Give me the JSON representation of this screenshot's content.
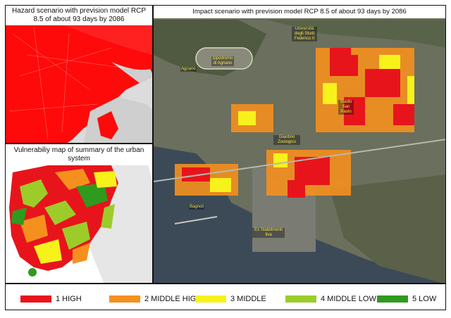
{
  "panels": {
    "hazard": {
      "title": "Hazard scenario with prevision model RCP 8.5 of about 93 days by 2086"
    },
    "vulnerability": {
      "title": "Vulnerabiliy map of summary of the urban system"
    },
    "impact": {
      "title": "Impact scenario with prevision model RCP 8.5 of about 93 days by 2086",
      "place_labels": {
        "agnano": "Agnano",
        "ippodromo": "Ippodromo di Agnano",
        "universita": "Università degli Studi Federico II",
        "stadio": "Stadio San Paolo",
        "giardino": "Giardino Zoologico",
        "bagnoli": "Bagnoli",
        "ex_stabilimenti": "Ex Stabilimenti Ilva"
      }
    }
  },
  "legend": [
    {
      "label": "1 HIGH",
      "color": "#e8141c"
    },
    {
      "label": "2 MIDDLE HIGH",
      "color": "#f5901e"
    },
    {
      "label": "3 MIDDLE",
      "color": "#f7f21c"
    },
    {
      "label": "4 MIDDLE LOW",
      "color": "#9ccc2a"
    },
    {
      "label": "5 LOW",
      "color": "#2f9a1e"
    }
  ],
  "colors": {
    "hazard_red": "#ff0a0a",
    "sea": "#3c4a58",
    "land_gray": "#d8d8d8"
  }
}
